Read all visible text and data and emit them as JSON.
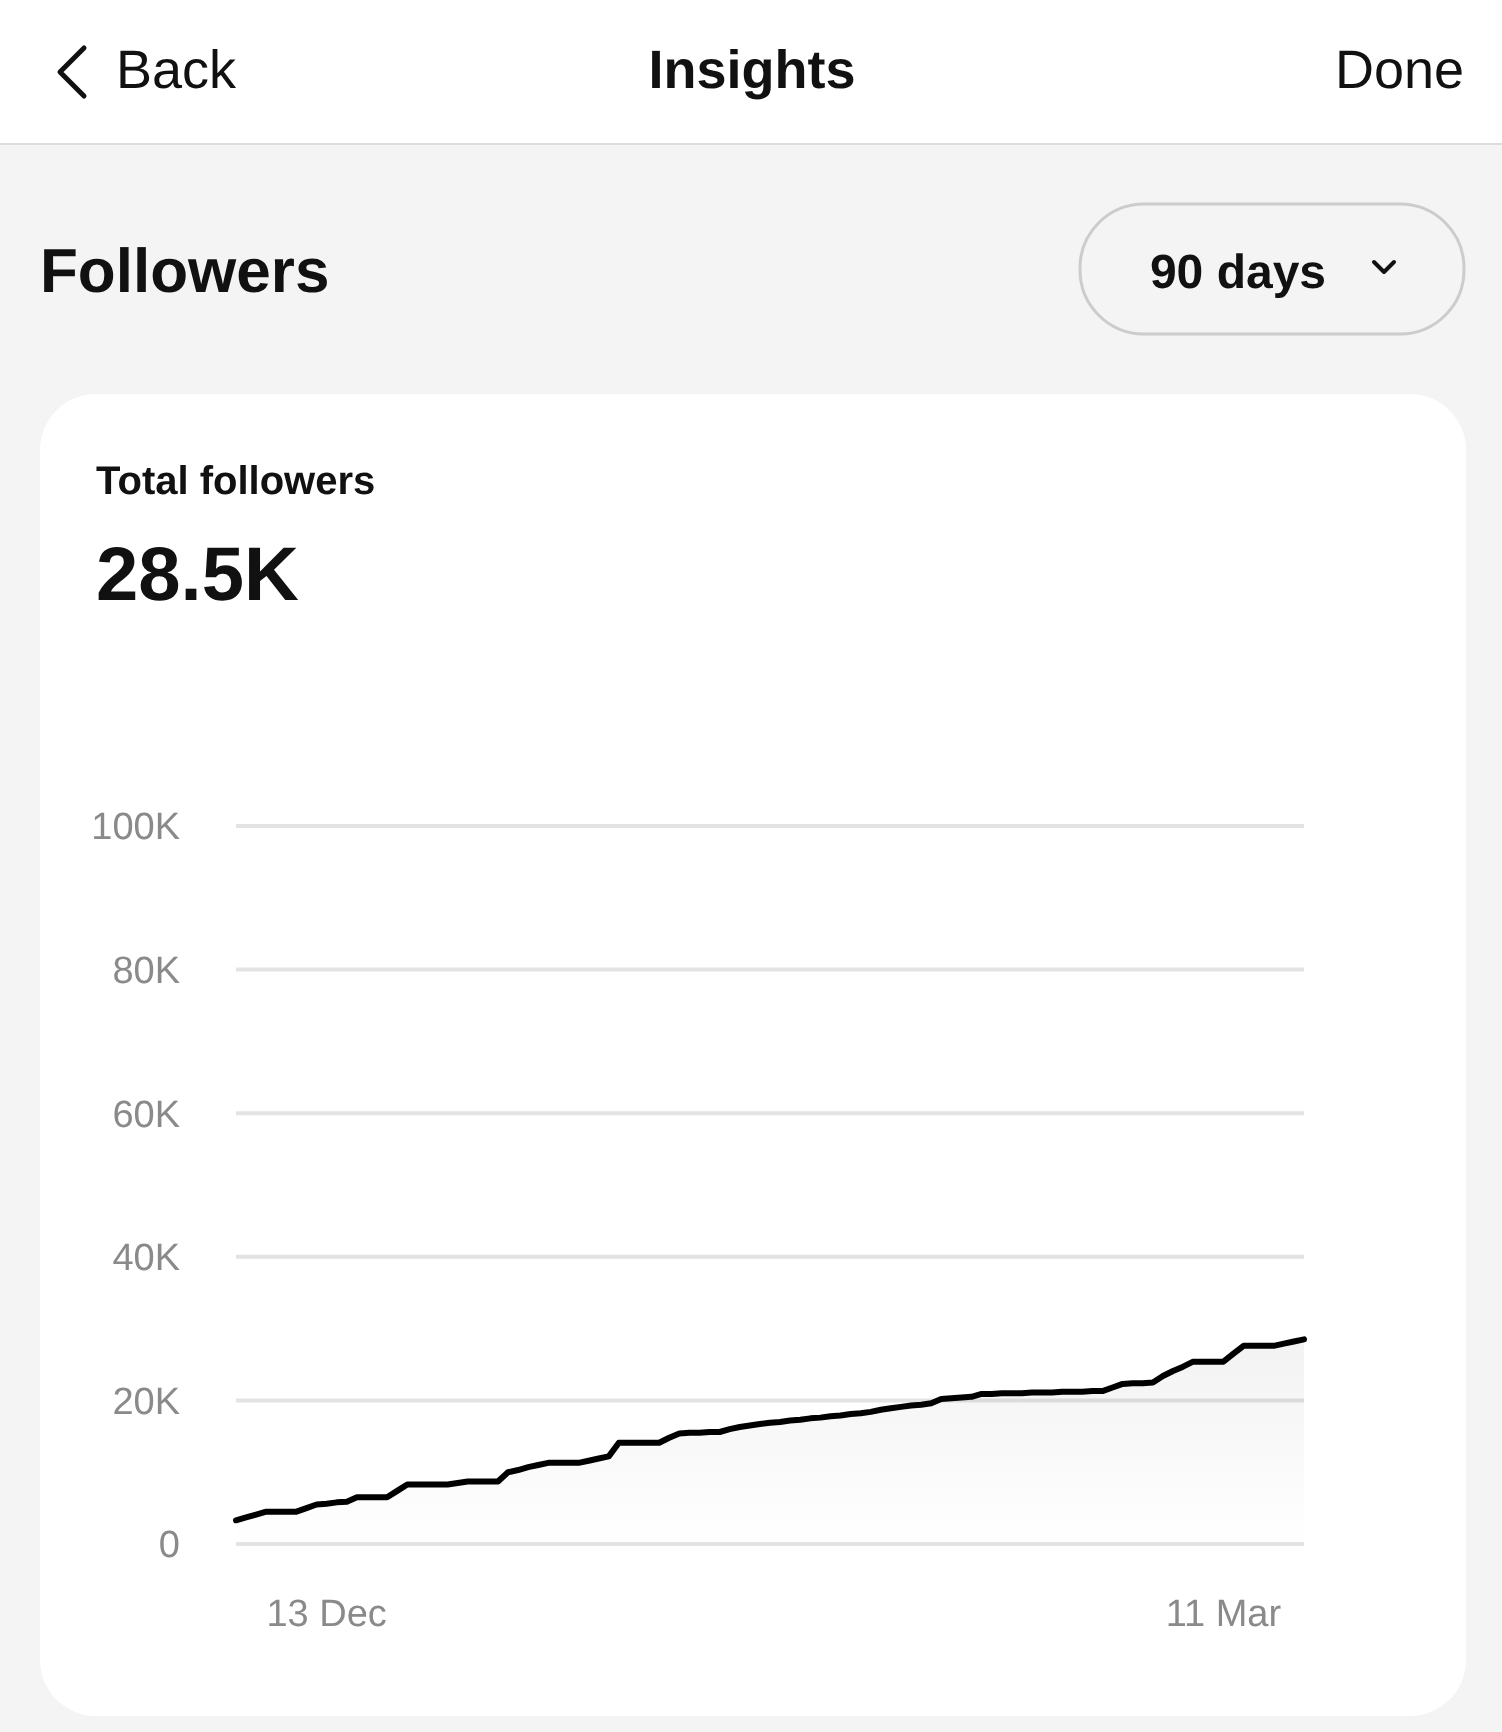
{
  "chart_data": {
    "type": "area",
    "title": "Total followers",
    "subtitle": "28.5K",
    "annotations": [
      "Back",
      "Insights",
      "Done",
      "Followers",
      "90 days"
    ],
    "categories": [
      null,
      null,
      null,
      null,
      null,
      null,
      null,
      null,
      null,
      "13 Dec",
      null,
      null,
      null,
      null,
      null,
      null,
      null,
      null,
      null,
      null,
      null,
      null,
      null,
      null,
      null,
      null,
      null,
      null,
      null,
      null,
      null,
      null,
      null,
      null,
      null,
      null,
      null,
      null,
      null,
      null,
      null,
      null,
      null,
      null,
      null,
      null,
      null,
      null,
      null,
      null,
      null,
      null,
      null,
      null,
      null,
      null,
      null,
      null,
      null,
      null,
      null,
      null,
      null,
      null,
      null,
      null,
      null,
      null,
      null,
      null,
      null,
      null,
      null,
      null,
      null,
      null,
      null,
      null,
      null,
      null,
      null,
      null,
      null,
      null,
      null,
      null,
      null,
      null,
      null,
      null,
      null,
      null,
      null,
      null,
      null,
      null,
      null,
      null,
      "11 Mar",
      null,
      null,
      null,
      null,
      null,
      null,
      null,
      null
    ],
    "series": [
      {
        "color": "#000000",
        "values": [
          3300,
          3700,
          4100,
          4500,
          4500,
          4500,
          4500,
          5000,
          5500,
          5600,
          5800,
          5900,
          6500,
          6500,
          6500,
          6500,
          7400,
          8300,
          8300,
          8300,
          8300,
          8300,
          8500,
          8700,
          8700,
          8700,
          8700,
          10000,
          10300,
          10700,
          11000,
          11300,
          11300,
          11300,
          11300,
          11600,
          11900,
          12200,
          14100,
          14100,
          14100,
          14100,
          14100,
          14800,
          15400,
          15500,
          15500,
          15600,
          15600,
          16000,
          16300,
          16500,
          16700,
          16900,
          17000,
          17200,
          17300,
          17500,
          17600,
          17800,
          17900,
          18100,
          18200,
          18400,
          18700,
          18900,
          19100,
          19300,
          19400,
          19600,
          20200,
          20300,
          20400,
          20500,
          20900,
          20900,
          21000,
          21000,
          21000,
          21100,
          21100,
          21100,
          21200,
          21200,
          21200,
          21300,
          21300,
          21800,
          22300,
          22400,
          22400,
          22500,
          23400,
          24100,
          24700,
          25400,
          25400,
          25400,
          25400,
          26500,
          27600,
          27600,
          27600,
          27600,
          27900,
          28200,
          28500
        ]
      }
    ],
    "ylim": [
      0,
      100000
    ],
    "yticks": [
      {
        "value": 0,
        "label": "0"
      },
      {
        "value": 20000,
        "label": "20K"
      },
      {
        "value": 40000,
        "label": "40K"
      },
      {
        "value": 60000,
        "label": "60K"
      },
      {
        "value": 80000,
        "label": "80K"
      },
      {
        "value": 100000,
        "label": "100K"
      }
    ],
    "grid": "y"
  }
}
